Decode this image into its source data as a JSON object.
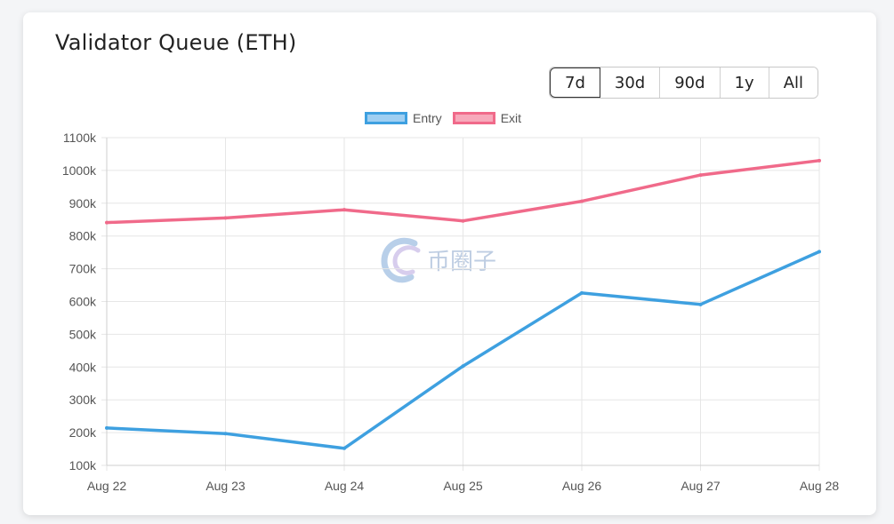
{
  "card": {
    "title": "Validator Queue (ETH)"
  },
  "range_buttons": [
    {
      "label": "7d",
      "active": true
    },
    {
      "label": "30d",
      "active": false
    },
    {
      "label": "90d",
      "active": false
    },
    {
      "label": "1y",
      "active": false
    },
    {
      "label": "All",
      "active": false
    }
  ],
  "watermark": {
    "text": "币圈子"
  },
  "chart_data": {
    "type": "line",
    "x": [
      "Aug 22",
      "Aug 23",
      "Aug 24",
      "Aug 25",
      "Aug 26",
      "Aug 27",
      "Aug 28"
    ],
    "y_ticks": [
      "100k",
      "200k",
      "300k",
      "400k",
      "500k",
      "600k",
      "700k",
      "800k",
      "900k",
      "1000k",
      "1100k"
    ],
    "ylim": [
      100000,
      1100000
    ],
    "grid": true,
    "legend_position": "top-center",
    "series": [
      {
        "name": "Entry",
        "color": "#3ea0e0",
        "fill": "#9fcff2",
        "values": [
          214000,
          197000,
          152000,
          403000,
          626000,
          591000,
          752000
        ]
      },
      {
        "name": "Exit",
        "color": "#f06a8a",
        "fill": "#f7a9bb",
        "values": [
          841000,
          855000,
          880000,
          846000,
          906000,
          986000,
          1030000
        ]
      }
    ]
  }
}
